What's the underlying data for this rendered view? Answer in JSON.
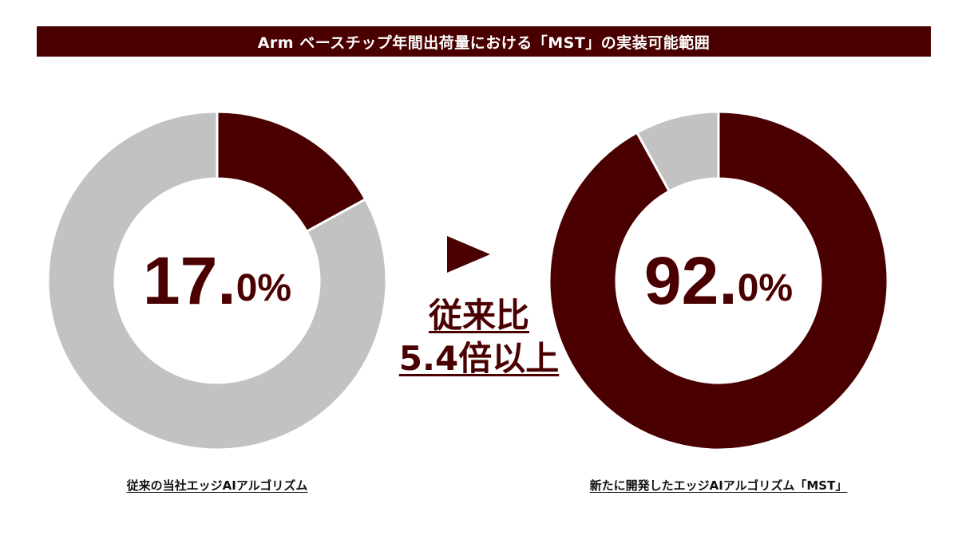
{
  "title": "Arm ベースチップ年間出荷量における「MST」の実装可能範囲",
  "colors": {
    "accent": "#4a0000",
    "gray": "#c2c2c2",
    "white": "#ffffff"
  },
  "chart_data": [
    {
      "type": "pie",
      "style": "donut",
      "slices": [
        {
          "value": 17.0,
          "color": "#4a0000"
        },
        {
          "value": 83.0,
          "color": "#c2c2c2"
        }
      ],
      "center_label": {
        "integer": "17.",
        "decimal": "0%"
      },
      "caption": "従来の当社エッジAIアルゴリズム"
    },
    {
      "type": "pie",
      "style": "donut",
      "slices": [
        {
          "value": 92.0,
          "color": "#4a0000"
        },
        {
          "value": 8.0,
          "color": "#c2c2c2"
        }
      ],
      "center_label": {
        "integer": "92.",
        "decimal": "0%"
      },
      "caption": "新たに開発したエッジAIアルゴリズム「MST」"
    }
  ],
  "comparison": {
    "line1": "従来比",
    "line2": "5.4倍以上",
    "arrow_icon": "right-triangle-icon"
  }
}
